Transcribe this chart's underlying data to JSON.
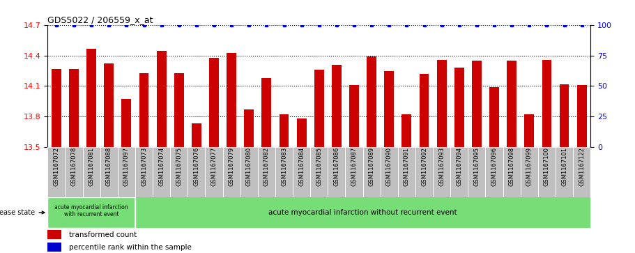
{
  "title": "GDS5022 / 206559_x_at",
  "categories": [
    "GSM1167072",
    "GSM1167078",
    "GSM1167081",
    "GSM1167088",
    "GSM1167097",
    "GSM1167073",
    "GSM1167074",
    "GSM1167075",
    "GSM1167076",
    "GSM1167077",
    "GSM1167079",
    "GSM1167080",
    "GSM1167082",
    "GSM1167083",
    "GSM1167084",
    "GSM1167085",
    "GSM1167086",
    "GSM1167087",
    "GSM1167089",
    "GSM1167090",
    "GSM1167091",
    "GSM1167092",
    "GSM1167093",
    "GSM1167094",
    "GSM1167095",
    "GSM1167096",
    "GSM1167098",
    "GSM1167099",
    "GSM1167100",
    "GSM1167101",
    "GSM1167122"
  ],
  "bar_values": [
    14.27,
    14.27,
    14.47,
    14.32,
    13.97,
    14.23,
    14.45,
    14.23,
    13.73,
    14.38,
    14.43,
    13.87,
    14.18,
    13.82,
    13.78,
    14.26,
    14.31,
    14.11,
    14.39,
    14.25,
    13.82,
    14.22,
    14.36,
    14.28,
    14.35,
    14.09,
    14.35,
    13.82,
    14.36,
    14.12,
    14.11
  ],
  "percentile_values": [
    100,
    100,
    100,
    100,
    100,
    100,
    100,
    100,
    100,
    100,
    100,
    100,
    100,
    100,
    100,
    100,
    100,
    100,
    100,
    100,
    100,
    100,
    100,
    100,
    100,
    100,
    100,
    100,
    100,
    100,
    100
  ],
  "bar_color": "#cc0000",
  "percentile_color": "#0000cc",
  "ylim": [
    13.5,
    14.7
  ],
  "yticks_left": [
    13.5,
    13.8,
    14.1,
    14.4,
    14.7
  ],
  "yticks_right": [
    0,
    25,
    50,
    75,
    100
  ],
  "disease_group1_label": "acute myocardial infarction\nwith recurrent event",
  "disease_group2_label": "acute myocardial infarction without recurrent event",
  "disease_state_label": "disease state",
  "group1_count": 5,
  "group_bg_color": "#77dd77",
  "group1_border_color": "#ffffff",
  "tick_bg_color": "#c0c0c0",
  "legend_bar_label": "transformed count",
  "legend_line_label": "percentile rank within the sample",
  "right_ylim": [
    0,
    100
  ],
  "bar_width": 0.55
}
